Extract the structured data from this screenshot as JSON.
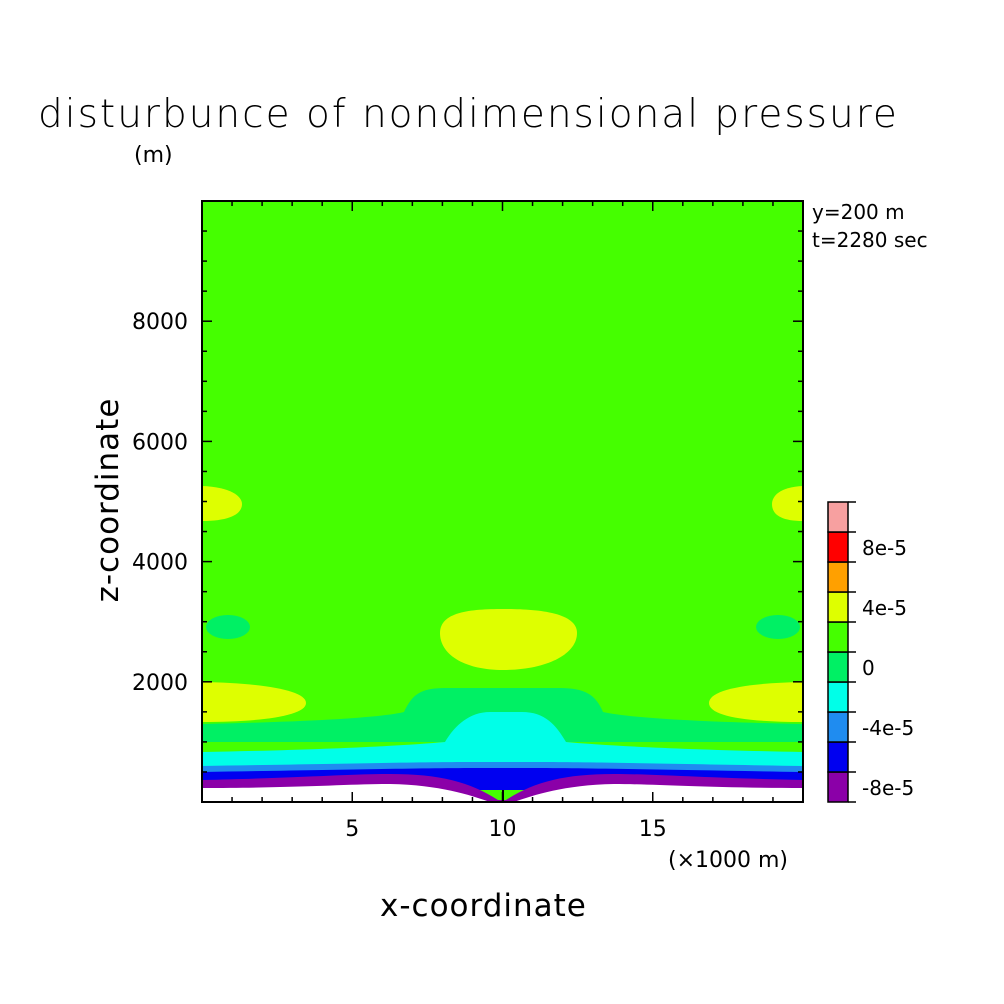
{
  "chart_data": {
    "type": "heatmap",
    "title": "disturbunce of nondimensional pressure",
    "xlabel": "x-coordinate",
    "ylabel": "z-coordinate",
    "x_unit": "(×1000 m)",
    "y_unit": "(m)",
    "annotations": [
      "y=200 m",
      "t=2280 sec"
    ],
    "xlim": [
      0,
      20
    ],
    "ylim": [
      0,
      10000
    ],
    "x_ticks": [
      5,
      10,
      15
    ],
    "x_tick_labels": [
      "5",
      "10",
      "15"
    ],
    "y_ticks": [
      2000,
      4000,
      6000,
      8000
    ],
    "y_tick_labels": [
      "2000",
      "4000",
      "6000",
      "8000"
    ],
    "colorbar": {
      "levels": [
        {
          "color": "#8b00a8",
          "label": "-8e-5"
        },
        {
          "color": "#0000f0",
          "label": ""
        },
        {
          "color": "#1f8cf0",
          "label": "-4e-5"
        },
        {
          "color": "#00ffe8",
          "label": ""
        },
        {
          "color": "#00f064",
          "label": "0"
        },
        {
          "color": "#45ff00",
          "label": ""
        },
        {
          "color": "#deff00",
          "label": "4e-5"
        },
        {
          "color": "#ffa000",
          "label": ""
        },
        {
          "color": "#ff0000",
          "label": "8e-5"
        },
        {
          "color": "#f7a0a0",
          "label": ""
        }
      ]
    },
    "background_level_color": "#45ff00",
    "features": [
      {
        "name": "positive anomaly",
        "x_center": 10,
        "z_center": 2750,
        "color": "#deff00"
      },
      {
        "name": "positive anomaly edge",
        "x_center": 0,
        "z_center": 1650,
        "color": "#deff00"
      },
      {
        "name": "positive anomaly edge",
        "x_center": 20,
        "z_center": 1650,
        "color": "#deff00"
      },
      {
        "name": "positive anomaly edge",
        "x_center": 0,
        "z_center": 4850,
        "color": "#deff00"
      },
      {
        "name": "positive anomaly edge",
        "x_center": 20,
        "z_center": 4850,
        "color": "#deff00"
      },
      {
        "name": "negative anomaly",
        "x_center": 10,
        "z_center": 1000,
        "color": "#00ffe8"
      },
      {
        "name": "strong negative surface layer",
        "x_center": 10,
        "z_center": 200,
        "color": "#8b00a8"
      }
    ]
  }
}
